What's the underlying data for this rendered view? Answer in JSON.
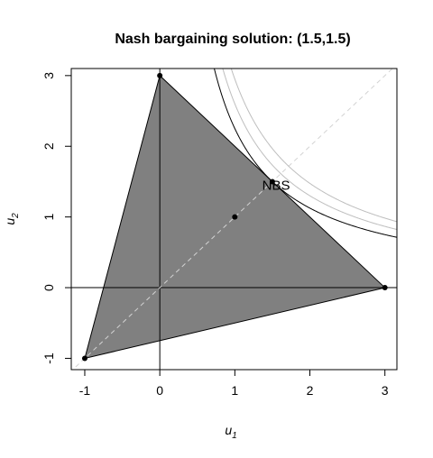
{
  "chart_data": {
    "type": "scatter",
    "title": "Nash bargaining solution: (1.5,1.5)",
    "xlabel": "u",
    "xlabel_sub": "1",
    "ylabel": "u",
    "ylabel_sub": "2",
    "xlim": [
      -1.18,
      3.16
    ],
    "ylim": [
      -1.16,
      3.1
    ],
    "xticks": [
      -1,
      0,
      1,
      2,
      3
    ],
    "yticks": [
      -1,
      0,
      1,
      2,
      3
    ],
    "xtick_labels": [
      "-1",
      "0",
      "1",
      "2",
      "3"
    ],
    "ytick_labels": [
      "-1",
      "0",
      "1",
      "2",
      "3"
    ],
    "feasible_set": [
      [
        -1,
        -1
      ],
      [
        0,
        3
      ],
      [
        3,
        0
      ]
    ],
    "points": [
      [
        -1,
        -1
      ],
      [
        0,
        3
      ],
      [
        3,
        0
      ],
      [
        1,
        1
      ]
    ],
    "nbs_point": [
      1.5,
      1.5
    ],
    "annotation": {
      "text": "NBS",
      "x": 1.55,
      "y": 1.45
    },
    "nash_product_curves": [
      {
        "level": 2.25,
        "color": "#000000"
      },
      {
        "level": 2.6,
        "color": "#bebebe"
      },
      {
        "level": 2.95,
        "color": "#bebebe"
      }
    ],
    "diagonal": {
      "color": "#d3d3d3",
      "style": "dashed"
    },
    "fill_color": "#808080",
    "grid": false
  }
}
